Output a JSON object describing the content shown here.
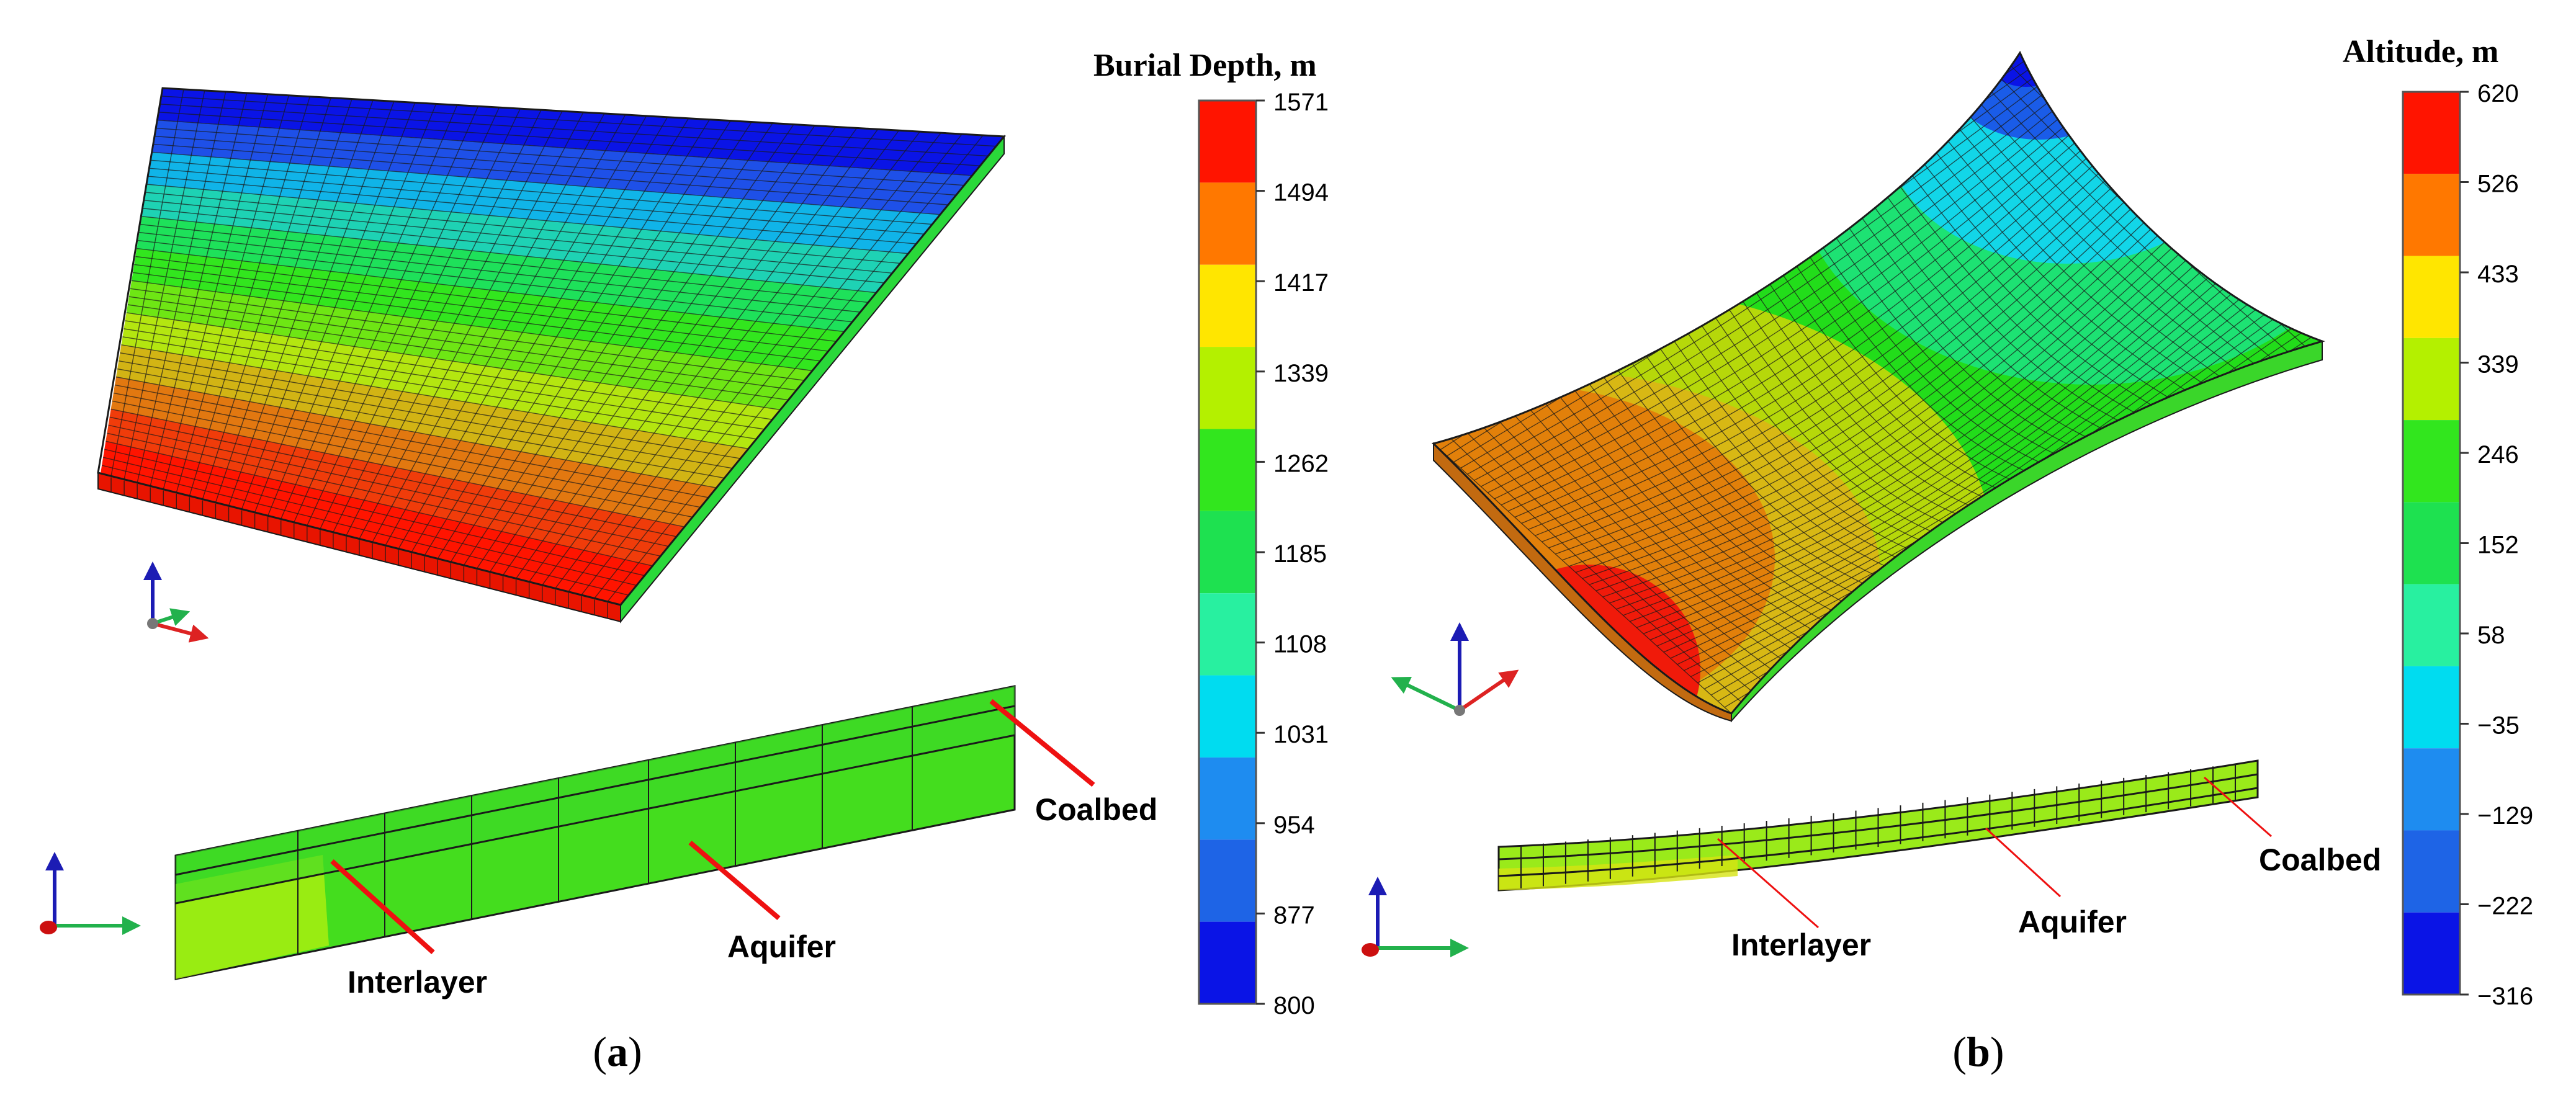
{
  "panels": {
    "a": {
      "caption_open": "(",
      "caption_letter": "a",
      "caption_close": ")",
      "legend": {
        "title": "Burial Depth, m",
        "ticks": [
          "1571",
          "1494",
          "1417",
          "1339",
          "1262",
          "1185",
          "1108",
          "1031",
          "954",
          "877",
          "800"
        ]
      },
      "labels": {
        "interlayer": "Interlayer",
        "aquifer": "Aquifer",
        "coalbed": "Coalbed"
      }
    },
    "b": {
      "caption_open": "(",
      "caption_letter": "b",
      "caption_close": ")",
      "legend": {
        "title": "Altitude, m",
        "ticks": [
          "620",
          "526",
          "433",
          "339",
          "246",
          "152",
          "58",
          "−35",
          "−129",
          "−222",
          "−316"
        ]
      },
      "labels": {
        "interlayer": "Interlayer",
        "aquifer": "Aquifer",
        "coalbed": "Coalbed"
      }
    }
  },
  "colors": {
    "colormap": [
      "#ff1400",
      "#ff7800",
      "#ffe600",
      "#b4f000",
      "#32e61e",
      "#1ee150",
      "#28f0a0",
      "#00dcf0",
      "#1e8cf0",
      "#1e64e6",
      "#0a14e6"
    ],
    "annotation_line": "#ee1111",
    "mesh": "#1a1a1a"
  },
  "icons": [
    "axis-triad-icon"
  ]
}
